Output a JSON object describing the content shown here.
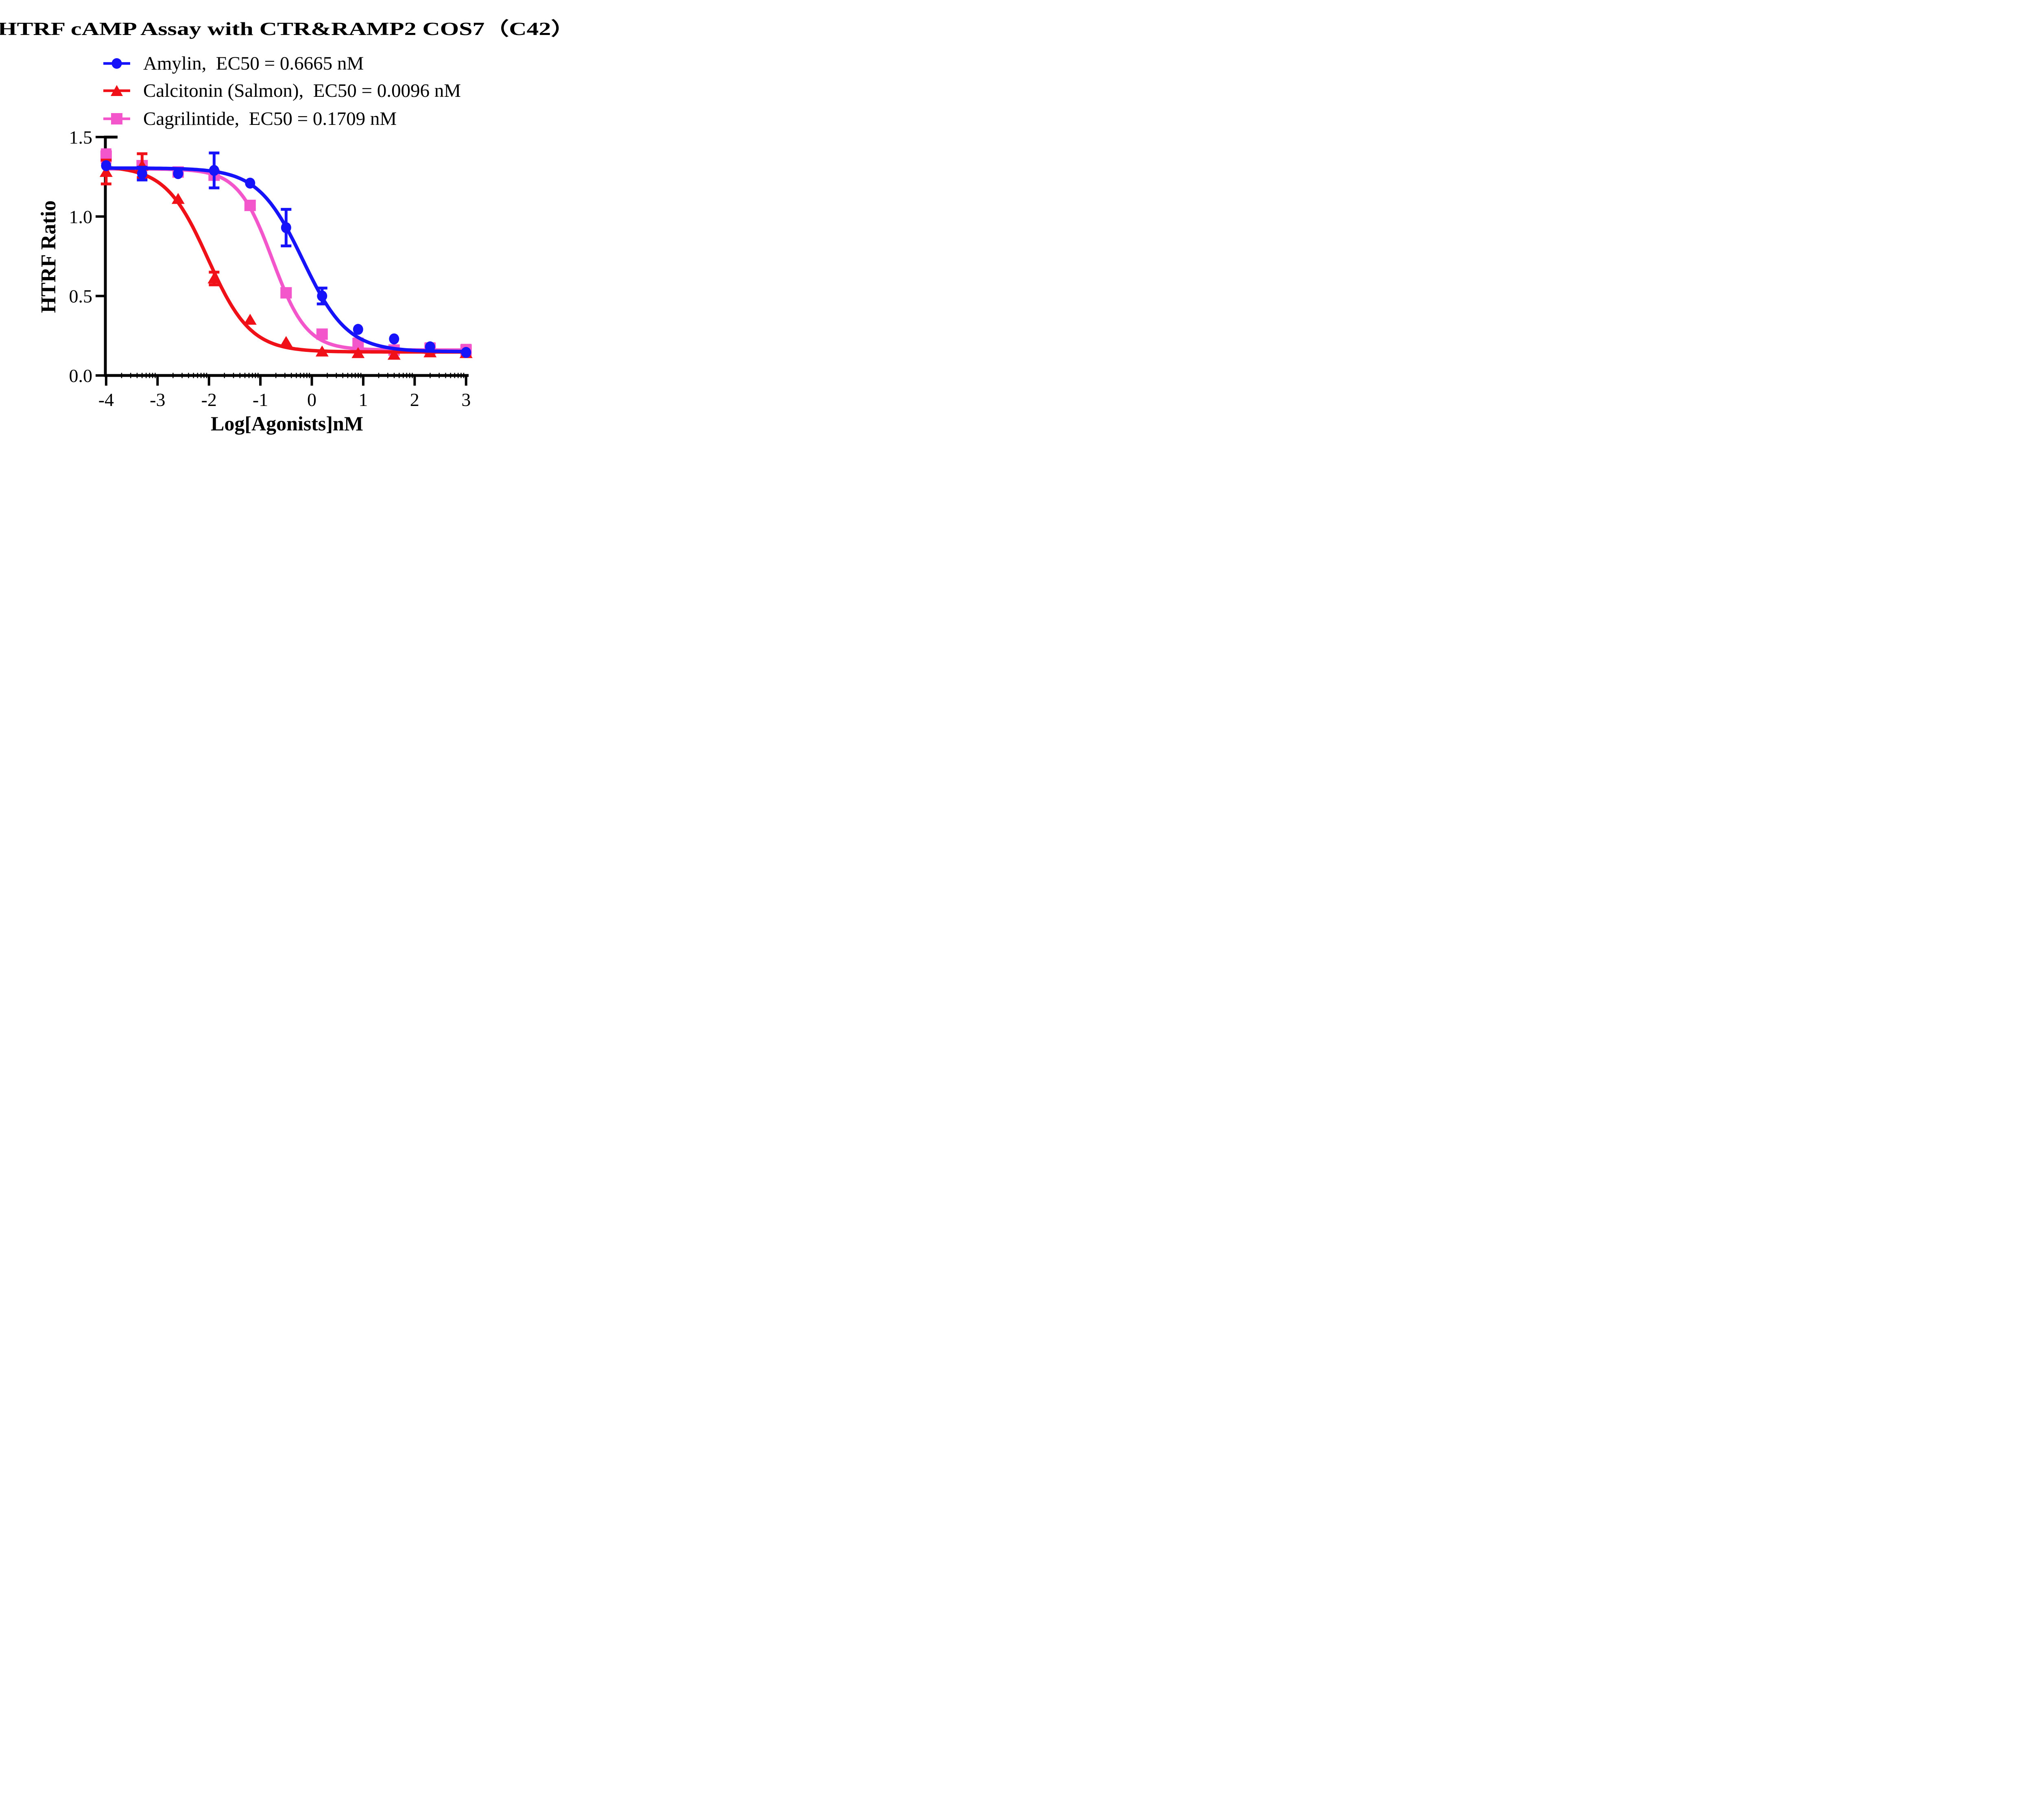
{
  "title": "HTRF cAMP Assay with CTR&RAMP2 COS7（C42）",
  "chart_data": {
    "type": "line",
    "title": "HTRF cAMP Assay with CTR&RAMP2 COS7（C42）",
    "xlabel": "Log[Agonists]nM",
    "ylabel": "HTRF Ratio",
    "xlim": [
      -4,
      3
    ],
    "ylim": [
      0.0,
      1.5
    ],
    "xticks": [
      "-4",
      "-3",
      "-2",
      "-1",
      "0",
      "1",
      "2",
      "3"
    ],
    "xtick_values": [
      -4,
      -3,
      -2,
      -1,
      0,
      1,
      2,
      3
    ],
    "yticks": [
      "0.0",
      "0.5",
      "1.0",
      "1.5"
    ],
    "ytick_values": [
      0.0,
      0.5,
      1.0,
      1.5
    ],
    "grid": false,
    "legend_position": "top-left",
    "x_log_scale_minor_ticks": true,
    "x": [
      -4,
      -3.3,
      -2.6,
      -1.9,
      -1.2,
      -0.5,
      0.2,
      0.9,
      1.6,
      2.3,
      3.0
    ],
    "series": [
      {
        "name": "Amylin",
        "legend_label": "Amylin,  EC50 = 0.6665 nM",
        "ec50_nM": 0.6665,
        "color": "#1612fa",
        "marker": "circle",
        "values": [
          1.32,
          1.27,
          1.27,
          1.29,
          1.21,
          0.93,
          0.5,
          0.29,
          0.23,
          0.18,
          0.145
        ],
        "errors": [
          null,
          0.04,
          null,
          0.11,
          null,
          0.115,
          0.05,
          null,
          null,
          null,
          null
        ],
        "fit": {
          "top": 1.305,
          "bottom": 0.15,
          "logEC50": -0.176,
          "hill": 1.0
        }
      },
      {
        "name": "Calcitonin (Salmon)",
        "legend_label": "Calcitonin (Salmon),  EC50 = 0.0096 nM",
        "ec50_nM": 0.0096,
        "color": "#f01018",
        "marker": "triangle",
        "values": [
          1.28,
          1.32,
          1.11,
          0.61,
          0.35,
          0.21,
          0.15,
          0.14,
          0.13,
          0.145,
          0.14
        ],
        "errors": [
          0.075,
          0.075,
          null,
          0.04,
          null,
          null,
          null,
          null,
          null,
          null,
          null
        ],
        "fit": {
          "top": 1.318,
          "bottom": 0.148,
          "logEC50": -2.018,
          "hill": 1.05
        }
      },
      {
        "name": "Cagrilintide",
        "legend_label": "Cagrilintide,  EC50 = 0.1709 nM",
        "ec50_nM": 0.1709,
        "color": "#f355cb",
        "marker": "square",
        "values": [
          1.38,
          1.32,
          1.28,
          1.26,
          1.07,
          0.52,
          0.26,
          0.2,
          0.16,
          0.17,
          0.16
        ],
        "errors": [
          0.04,
          null,
          null,
          null,
          null,
          null,
          null,
          0.03,
          null,
          0.03,
          0.03
        ],
        "fit": {
          "top": 1.3,
          "bottom": 0.16,
          "logEC50": -0.767,
          "hill": 1.3
        }
      }
    ],
    "draw_order": [
      2,
      1,
      0
    ]
  }
}
